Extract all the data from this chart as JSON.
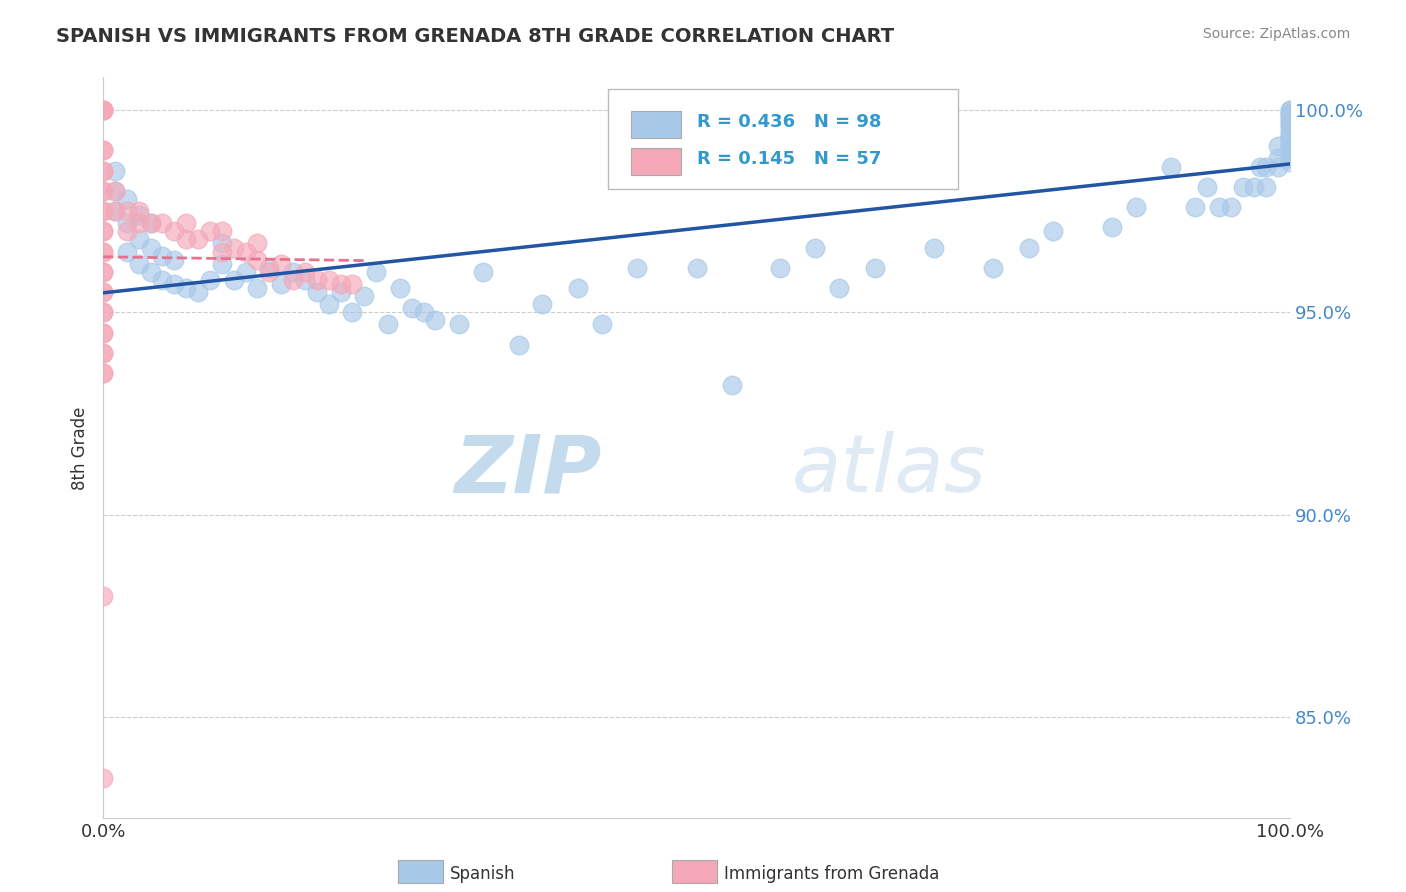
{
  "title": "SPANISH VS IMMIGRANTS FROM GRENADA 8TH GRADE CORRELATION CHART",
  "source_text": "Source: ZipAtlas.com",
  "ylabel": "8th Grade",
  "xlim": [
    0.0,
    1.0
  ],
  "ylim": [
    0.825,
    1.008
  ],
  "yticks": [
    0.85,
    0.9,
    0.95,
    1.0
  ],
  "ytick_labels": [
    "85.0%",
    "90.0%",
    "95.0%",
    "100.0%"
  ],
  "xticks": [
    0.0,
    0.1,
    0.2,
    0.3,
    0.4,
    0.5,
    0.6,
    0.7,
    0.8,
    0.9,
    1.0
  ],
  "xtick_labels": [
    "0.0%",
    "",
    "",
    "",
    "",
    "",
    "",
    "",
    "",
    "",
    "100.0%"
  ],
  "blue_color": "#a8c8e8",
  "pink_color": "#f4a8b8",
  "blue_line_color": "#2255a4",
  "pink_line_color": "#e87090",
  "R_blue": 0.436,
  "N_blue": 98,
  "R_pink": 0.145,
  "N_pink": 57,
  "watermark_zip": "ZIP",
  "watermark_atlas": "atlas",
  "legend_label_blue": "Spanish",
  "legend_label_pink": "Immigrants from Grenada",
  "blue_points_x": [
    0.01,
    0.01,
    0.01,
    0.02,
    0.02,
    0.02,
    0.03,
    0.03,
    0.03,
    0.04,
    0.04,
    0.04,
    0.05,
    0.05,
    0.06,
    0.06,
    0.07,
    0.08,
    0.09,
    0.1,
    0.1,
    0.11,
    0.12,
    0.13,
    0.14,
    0.15,
    0.16,
    0.17,
    0.18,
    0.19,
    0.2,
    0.21,
    0.22,
    0.23,
    0.24,
    0.25,
    0.26,
    0.27,
    0.28,
    0.3,
    0.32,
    0.35,
    0.37,
    0.4,
    0.42,
    0.45,
    0.5,
    0.53,
    0.57,
    0.6,
    0.62,
    0.65,
    0.7,
    0.75,
    0.78,
    0.8,
    0.85,
    0.87,
    0.9,
    0.92,
    0.93,
    0.94,
    0.95,
    0.96,
    0.97,
    0.975,
    0.98,
    0.98,
    0.99,
    0.99,
    0.99,
    1.0,
    1.0,
    1.0,
    1.0,
    1.0,
    1.0,
    1.0,
    1.0,
    1.0,
    1.0,
    1.0,
    1.0,
    1.0,
    1.0,
    1.0,
    1.0,
    1.0,
    1.0,
    1.0,
    1.0,
    1.0,
    1.0,
    1.0,
    1.0,
    1.0,
    1.0,
    1.0
  ],
  "blue_points_y": [
    0.975,
    0.98,
    0.985,
    0.965,
    0.972,
    0.978,
    0.962,
    0.968,
    0.974,
    0.96,
    0.966,
    0.972,
    0.958,
    0.964,
    0.957,
    0.963,
    0.956,
    0.955,
    0.958,
    0.962,
    0.967,
    0.958,
    0.96,
    0.956,
    0.961,
    0.957,
    0.96,
    0.958,
    0.955,
    0.952,
    0.955,
    0.95,
    0.954,
    0.96,
    0.947,
    0.956,
    0.951,
    0.95,
    0.948,
    0.947,
    0.96,
    0.942,
    0.952,
    0.956,
    0.947,
    0.961,
    0.961,
    0.932,
    0.961,
    0.966,
    0.956,
    0.961,
    0.966,
    0.961,
    0.966,
    0.97,
    0.971,
    0.976,
    0.986,
    0.976,
    0.981,
    0.976,
    0.976,
    0.981,
    0.981,
    0.986,
    0.981,
    0.986,
    0.986,
    0.988,
    0.991,
    0.987,
    0.989,
    0.991,
    0.988,
    0.991,
    0.991,
    0.993,
    0.99,
    0.993,
    0.992,
    0.994,
    0.99,
    0.993,
    0.994,
    0.996,
    0.993,
    0.996,
    0.997,
    0.995,
    0.997,
    0.998,
    0.999,
    0.998,
    0.999,
    1.0,
    0.999,
    1.0
  ],
  "pink_points_x": [
    0.0,
    0.0,
    0.0,
    0.0,
    0.0,
    0.0,
    0.0,
    0.0,
    0.0,
    0.0,
    0.0,
    0.0,
    0.0,
    0.0,
    0.0,
    0.0,
    0.0,
    0.0,
    0.0,
    0.0,
    0.0,
    0.0,
    0.0,
    0.0,
    0.0,
    0.0,
    0.0,
    0.0,
    0.0,
    0.0,
    0.01,
    0.01,
    0.02,
    0.02,
    0.03,
    0.03,
    0.04,
    0.05,
    0.06,
    0.07,
    0.07,
    0.08,
    0.09,
    0.1,
    0.1,
    0.11,
    0.12,
    0.13,
    0.13,
    0.14,
    0.15,
    0.16,
    0.17,
    0.18,
    0.19,
    0.2,
    0.21
  ],
  "pink_points_y": [
    1.0,
    1.0,
    1.0,
    1.0,
    0.99,
    0.99,
    0.985,
    0.985,
    0.98,
    0.98,
    0.975,
    0.975,
    0.97,
    0.97,
    0.965,
    0.965,
    0.96,
    0.96,
    0.955,
    0.955,
    0.95,
    0.95,
    0.945,
    0.945,
    0.94,
    0.94,
    0.935,
    0.935,
    0.88,
    0.835,
    0.98,
    0.975,
    0.975,
    0.97,
    0.972,
    0.975,
    0.972,
    0.972,
    0.97,
    0.972,
    0.968,
    0.968,
    0.97,
    0.97,
    0.965,
    0.966,
    0.965,
    0.963,
    0.967,
    0.96,
    0.962,
    0.958,
    0.96,
    0.958,
    0.958,
    0.957,
    0.957
  ]
}
